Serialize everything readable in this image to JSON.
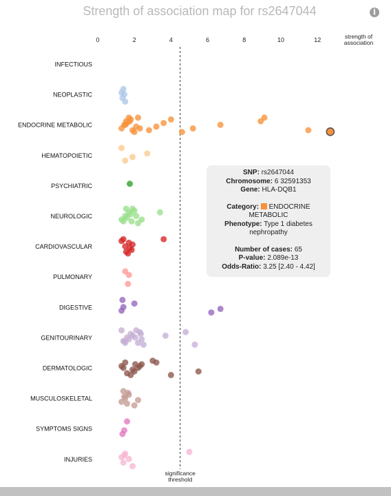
{
  "title": "Strength of association map for rs2647044",
  "info_icon": "info-icon",
  "chart_data": {
    "type": "scatter",
    "title": "Strength of association map for rs2647044",
    "xlabel": "strength of association",
    "xlabel_lines": [
      "strength of",
      "association"
    ],
    "xlim": [
      0,
      13
    ],
    "xticks": [
      0,
      2,
      4,
      6,
      8,
      10,
      12
    ],
    "threshold": 4.5,
    "threshold_label_lines": [
      "significance",
      "threshold"
    ],
    "categories": [
      {
        "name": "INFECTIOUS",
        "color": "#ffffff",
        "points": []
      },
      {
        "name": "NEOPLASTIC",
        "color": "#aec7e8",
        "points": [
          1.3,
          1.4,
          1.5,
          1.35,
          1.45
        ]
      },
      {
        "name": "ENDOCRINE METABOLIC",
        "color": "#f7923a",
        "points": [
          1.3,
          1.45,
          1.55,
          1.7,
          1.9,
          2.1,
          1.6,
          1.8,
          2.0,
          2.3,
          1.5,
          1.75,
          2.2,
          2.8,
          3.2,
          3.6,
          4.0,
          4.6,
          5.2,
          6.7,
          8.9,
          9.1,
          11.5,
          12.7
        ]
      },
      {
        "name": "HEMATOPOIETIC",
        "color": "#fdc98c",
        "points": [
          1.3,
          1.5,
          1.9,
          2.7
        ]
      },
      {
        "name": "PSYCHIATRIC",
        "color": "#2ca02c",
        "points": [
          1.75
        ]
      },
      {
        "name": "NEUROLOGIC",
        "color": "#98df8a",
        "points": [
          1.3,
          1.5,
          1.7,
          1.9,
          1.4,
          1.6,
          1.8,
          2.0,
          2.2,
          2.4,
          2.1,
          3.4,
          1.55,
          1.85
        ]
      },
      {
        "name": "CARDIOVASCULAR",
        "color": "#d62728",
        "points": [
          1.4,
          1.55,
          1.75,
          1.9,
          1.3,
          1.65,
          1.85,
          1.5,
          1.7,
          3.6
        ]
      },
      {
        "name": "PULMONARY",
        "color": "#ff9896",
        "points": [
          1.7,
          1.5,
          1.65
        ]
      },
      {
        "name": "DIGESTIVE",
        "color": "#9467bd",
        "points": [
          1.3,
          1.4,
          2.0,
          1.35,
          6.2,
          6.7
        ]
      },
      {
        "name": "GENITOURINARY",
        "color": "#c5b0d5",
        "points": [
          1.3,
          1.5,
          1.7,
          1.9,
          2.3,
          2.5,
          1.4,
          1.6,
          1.8,
          2.1,
          2.2,
          2.4,
          3.7,
          4.8,
          5.3,
          1.45,
          2.05,
          2.35
        ]
      },
      {
        "name": "DERMATOLOGIC",
        "color": "#8c564b",
        "points": [
          1.3,
          1.5,
          1.8,
          2.0,
          2.2,
          2.4,
          3.0,
          1.6,
          1.9,
          2.3,
          3.2,
          4.0,
          5.5,
          1.4,
          2.05
        ]
      },
      {
        "name": "MUSCULOSKELETAL",
        "color": "#c49c94",
        "points": [
          1.3,
          1.5,
          1.7,
          1.4,
          1.6,
          2.2,
          1.45,
          1.65,
          2.0
        ]
      },
      {
        "name": "SYMPTOMS SIGNS",
        "color": "#e377c2",
        "points": [
          1.6,
          1.35,
          1.45
        ]
      },
      {
        "name": "INJURIES",
        "color": "#f7b6d2",
        "points": [
          1.3,
          1.5,
          1.9,
          1.4,
          1.7,
          1.45,
          5.0
        ]
      }
    ],
    "highlighted": {
      "category": "ENDOCRINE METABOLIC",
      "value": 12.7
    }
  },
  "tooltip": {
    "snp_label": "SNP:",
    "snp": "rs2647044",
    "chromosome_label": "Chromosome:",
    "chromosome": "6 32591353",
    "gene_label": "Gene:",
    "gene": "HLA-DQB1",
    "category_label": "Category:",
    "category_color": "#f7923a",
    "category_line1": "ENDOCRINE",
    "category_line2": "METABOLIC",
    "phenotype_label": "Phenotype:",
    "phenotype_line1": "Type 1 diabetes",
    "phenotype_line2": "nephropathy",
    "cases_label": "Number of cases:",
    "cases": "65",
    "pvalue_label": "P-value:",
    "pvalue": "2.089e-13",
    "or_label": "Odds-Ratio:",
    "or": "3.25 [2.40 - 4.42]"
  }
}
